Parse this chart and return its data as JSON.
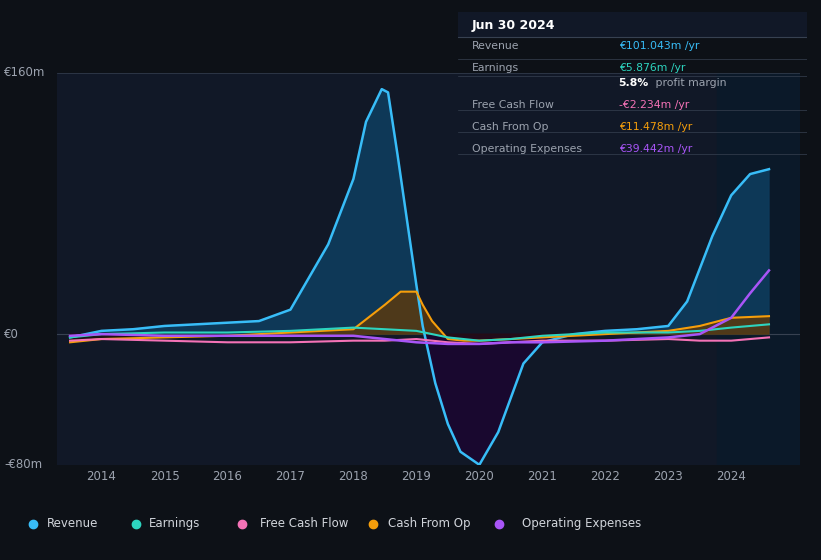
{
  "bg_color": "#0d1117",
  "chart_bg_color": "#111827",
  "text_color": "#9ca3af",
  "ylim": [
    -80,
    160
  ],
  "xlim": [
    2013.3,
    2025.1
  ],
  "yticks": [
    -80,
    0,
    160
  ],
  "ytick_labels": [
    "-€80m",
    "€0",
    "€160m"
  ],
  "xticks": [
    2014,
    2015,
    2016,
    2017,
    2018,
    2019,
    2020,
    2021,
    2022,
    2023,
    2024
  ],
  "revenue_x": [
    2013.5,
    2014.0,
    2014.5,
    2015.0,
    2015.5,
    2016.0,
    2016.5,
    2017.0,
    2017.3,
    2017.6,
    2018.0,
    2018.2,
    2018.45,
    2018.55,
    2018.7,
    2019.0,
    2019.1,
    2019.3,
    2019.5,
    2019.7,
    2020.0,
    2020.3,
    2020.7,
    2021.0,
    2021.5,
    2022.0,
    2022.5,
    2023.0,
    2023.3,
    2023.7,
    2024.0,
    2024.3,
    2024.6
  ],
  "revenue_y": [
    -2,
    2,
    3,
    5,
    6,
    7,
    8,
    15,
    35,
    55,
    95,
    130,
    150,
    148,
    110,
    30,
    5,
    -30,
    -55,
    -72,
    -80,
    -60,
    -18,
    -5,
    0,
    2,
    3,
    5,
    20,
    60,
    85,
    98,
    101
  ],
  "earnings_x": [
    2013.5,
    2014.0,
    2015.0,
    2016.0,
    2017.0,
    2017.5,
    2018.0,
    2018.5,
    2019.0,
    2019.5,
    2020.0,
    2020.5,
    2021.0,
    2022.0,
    2023.0,
    2023.5,
    2024.0,
    2024.6
  ],
  "earnings_y": [
    -2,
    0,
    1,
    1,
    2,
    3,
    4,
    3,
    2,
    -2,
    -4,
    -3,
    -1,
    1,
    1,
    2,
    4,
    6
  ],
  "fcf_x": [
    2013.5,
    2014.0,
    2015.0,
    2016.0,
    2017.0,
    2018.0,
    2018.5,
    2019.0,
    2019.5,
    2020.0,
    2020.5,
    2021.0,
    2022.0,
    2023.0,
    2023.5,
    2024.0,
    2024.6
  ],
  "fcf_y": [
    -4,
    -3,
    -4,
    -5,
    -5,
    -4,
    -4,
    -3,
    -5,
    -6,
    -5,
    -4,
    -4,
    -3,
    -4,
    -4,
    -2
  ],
  "cashfromop_x": [
    2013.5,
    2014.0,
    2015.0,
    2016.0,
    2016.5,
    2017.0,
    2017.5,
    2018.0,
    2018.5,
    2018.75,
    2019.0,
    2019.1,
    2019.25,
    2019.5,
    2019.75,
    2020.0,
    2020.5,
    2021.0,
    2022.0,
    2023.0,
    2023.5,
    2024.0,
    2024.6
  ],
  "cashfromop_y": [
    -5,
    -3,
    -2,
    -1,
    0,
    1,
    2,
    3,
    18,
    26,
    26,
    18,
    8,
    -3,
    -4,
    -4,
    -3,
    -2,
    0,
    2,
    5,
    10,
    11
  ],
  "opex_x": [
    2013.5,
    2014.0,
    2015.0,
    2016.0,
    2017.0,
    2018.0,
    2019.0,
    2019.5,
    2020.0,
    2020.5,
    2021.0,
    2022.0,
    2022.5,
    2023.0,
    2023.5,
    2024.0,
    2024.3,
    2024.6
  ],
  "opex_y": [
    -1,
    0,
    -1,
    -1,
    -1,
    -1,
    -5,
    -6,
    -6,
    -5,
    -5,
    -4,
    -3,
    -2,
    0,
    10,
    25,
    39
  ],
  "revenue_color": "#38bdf8",
  "earnings_color": "#2dd4bf",
  "fcf_color": "#f472b6",
  "cashfromop_color": "#f59e0b",
  "opex_color": "#a855f7",
  "info_box": {
    "date": "Jun 30 2024",
    "rows": [
      {
        "label": "Revenue",
        "value": "€101.043m /yr",
        "value_color": "#38bdf8"
      },
      {
        "label": "Earnings",
        "value": "€5.876m /yr",
        "value_color": "#2dd4bf"
      },
      {
        "label": "",
        "value": "5.8% profit margin",
        "value_color": "#ffffff"
      },
      {
        "label": "Free Cash Flow",
        "value": "-€2.234m /yr",
        "value_color": "#f472b6"
      },
      {
        "label": "Cash From Op",
        "value": "€11.478m /yr",
        "value_color": "#f59e0b"
      },
      {
        "label": "Operating Expenses",
        "value": "€39.442m /yr",
        "value_color": "#a855f7"
      }
    ]
  },
  "legend_items": [
    {
      "label": "Revenue",
      "color": "#38bdf8"
    },
    {
      "label": "Earnings",
      "color": "#2dd4bf"
    },
    {
      "label": "Free Cash Flow",
      "color": "#f472b6"
    },
    {
      "label": "Cash From Op",
      "color": "#f59e0b"
    },
    {
      "label": "Operating Expenses",
      "color": "#a855f7"
    }
  ]
}
